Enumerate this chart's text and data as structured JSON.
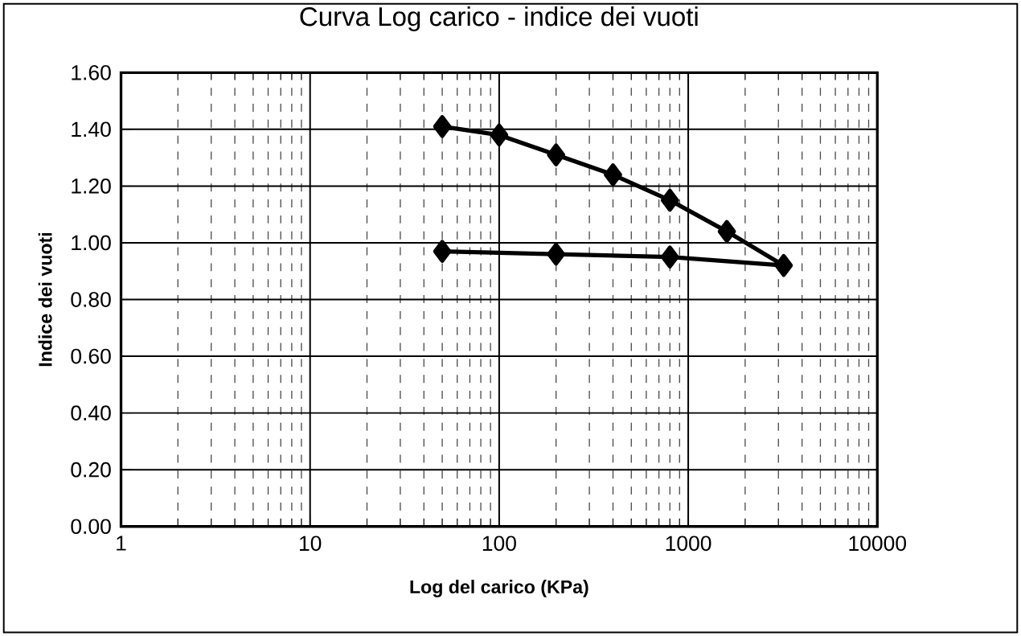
{
  "chart_data": {
    "type": "line",
    "title": "Curva Log carico - indice dei vuoti",
    "xlabel": "Log del carico (KPa)",
    "ylabel": "Indice dei vuoti",
    "log": "x",
    "grid": true,
    "marker": "diamond",
    "line_style": "solid",
    "xlim": [
      1,
      10000
    ],
    "xticks": [
      1,
      10,
      100,
      1000,
      10000
    ],
    "ylim": [
      0,
      1.6
    ],
    "yticks": [
      {
        "value": 0,
        "label": "0.00"
      },
      {
        "value": 0.2,
        "label": "0.20"
      },
      {
        "value": 0.4,
        "label": "0.40"
      },
      {
        "value": 0.6,
        "label": "0.60"
      },
      {
        "value": 0.8,
        "label": "0.80"
      },
      {
        "value": 1.0,
        "label": "1.00"
      },
      {
        "value": 1.2,
        "label": "1.20"
      },
      {
        "value": 1.4,
        "label": "1.40"
      },
      {
        "value": 1.6,
        "label": "1.60"
      }
    ],
    "series": [
      {
        "color": "#000000",
        "x": [
          50,
          100,
          200,
          400,
          800,
          1600,
          3200,
          800,
          200,
          50
        ],
        "values": [
          1.41,
          1.38,
          1.31,
          1.24,
          1.15,
          1.04,
          0.92,
          0.95,
          0.96,
          0.97
        ]
      }
    ]
  }
}
